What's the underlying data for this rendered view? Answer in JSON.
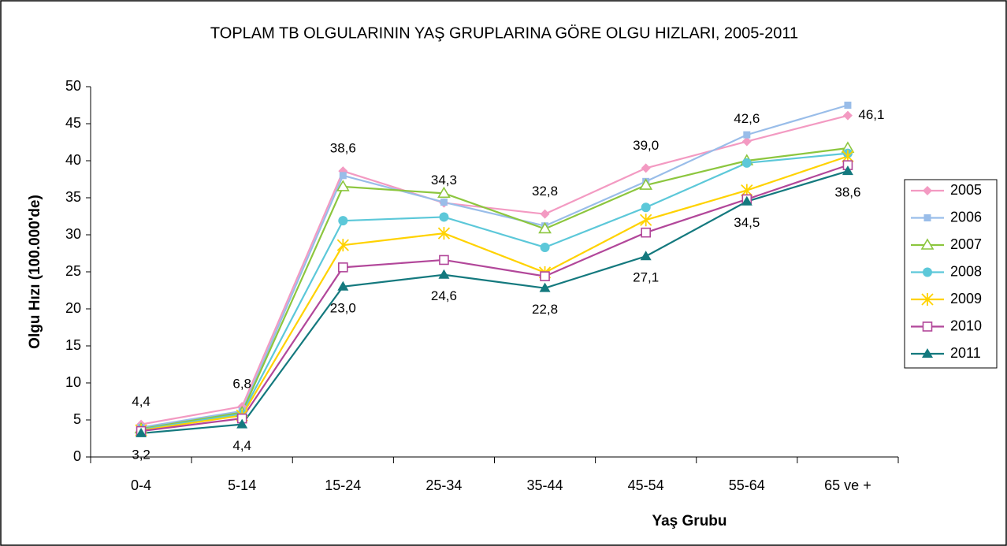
{
  "chart_data": {
    "type": "line",
    "title": "TOPLAM TB OLGULARININ YAŞ GRUPLARINA GÖRE OLGU HIZLARI, 2005-2011",
    "xlabel": "Yaş Grubu",
    "ylabel": "Olgu Hızı (100.000'de)",
    "categories": [
      "0-4",
      "5-14",
      "15-24",
      "25-34",
      "35-44",
      "45-54",
      "55-64",
      "65 ve +"
    ],
    "ylim": [
      0,
      50
    ],
    "yticks": [
      0,
      5,
      10,
      15,
      20,
      25,
      30,
      35,
      40,
      45,
      50
    ],
    "grid": false,
    "legend": "right",
    "series": [
      {
        "name": "2005",
        "color": "#f39ac2",
        "marker": "diamond",
        "values": [
          4.4,
          6.8,
          38.6,
          34.3,
          32.8,
          39.0,
          42.6,
          46.1
        ],
        "value_labels": [
          "4,4",
          "6,8",
          "38,6",
          "34,3",
          "32,8",
          "39,0",
          "42,6",
          "46,1"
        ]
      },
      {
        "name": "2006",
        "color": "#99bde9",
        "marker": "square",
        "values": [
          4.0,
          6.2,
          38.0,
          34.4,
          31.2,
          37.2,
          43.5,
          47.5
        ]
      },
      {
        "name": "2007",
        "color": "#8cc63e",
        "marker": "triangle-open",
        "values": [
          3.8,
          6.0,
          36.5,
          35.6,
          30.8,
          36.7,
          40.0,
          41.7
        ]
      },
      {
        "name": "2008",
        "color": "#5cc8d9",
        "marker": "circle",
        "values": [
          3.7,
          5.8,
          31.9,
          32.4,
          28.3,
          33.7,
          39.7,
          41.0
        ]
      },
      {
        "name": "2009",
        "color": "#ffd200",
        "marker": "asterisk",
        "values": [
          3.6,
          5.6,
          28.6,
          30.2,
          24.9,
          32.0,
          36.0,
          40.6
        ]
      },
      {
        "name": "2010",
        "color": "#b2479a",
        "marker": "square-open",
        "values": [
          3.5,
          5.2,
          25.6,
          26.6,
          24.4,
          30.3,
          34.8,
          39.4
        ]
      },
      {
        "name": "2011",
        "color": "#14797e",
        "marker": "triangle",
        "values": [
          3.2,
          4.4,
          23.0,
          24.6,
          22.8,
          27.1,
          34.5,
          38.6
        ],
        "value_labels": [
          "3,2",
          "4,4",
          "23,0",
          "24,6",
          "22,8",
          "27,1",
          "34,5",
          "38,6"
        ]
      }
    ]
  }
}
